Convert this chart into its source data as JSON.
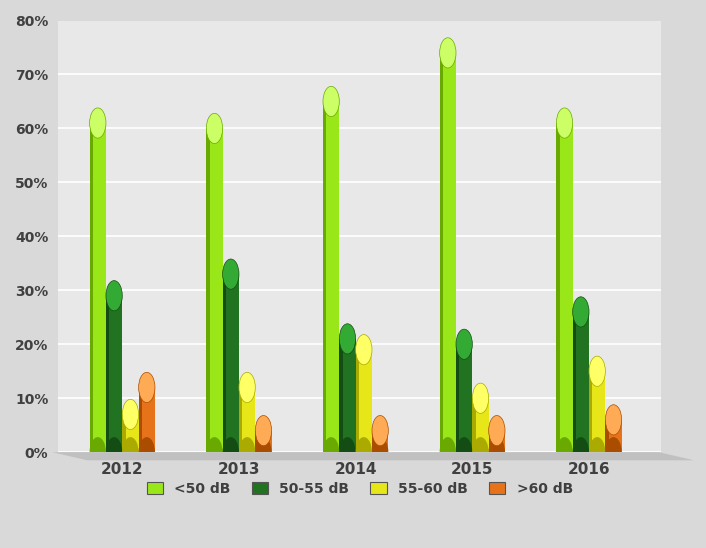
{
  "years": [
    "2012",
    "2013",
    "2014",
    "2015",
    "2016"
  ],
  "series": {
    "<50 dB": [
      61,
      60,
      65,
      74,
      61
    ],
    "50-55 dB": [
      29,
      33,
      21,
      20,
      26
    ],
    "55-60 dB": [
      7,
      12,
      19,
      10,
      15
    ],
    ">60 dB": [
      12,
      4,
      4,
      4,
      6
    ]
  },
  "colors": {
    "<50 dB": "#99e619",
    "50-55 dB": "#217321",
    "55-60 dB": "#e6e619",
    ">60 dB": "#e67319"
  },
  "dark_colors": {
    "<50 dB": "#6aaa00",
    "50-55 dB": "#144d14",
    "55-60 dB": "#aaaa00",
    ">60 dB": "#aa4d00"
  },
  "light_colors": {
    "<50 dB": "#ccff66",
    "50-55 dB": "#33aa33",
    "55-60 dB": "#ffff66",
    ">60 dB": "#ffaa55"
  },
  "ylim": [
    0,
    80
  ],
  "yticks": [
    0,
    10,
    20,
    30,
    40,
    50,
    60,
    70,
    80
  ],
  "ytick_labels": [
    "0%",
    "10%",
    "20%",
    "30%",
    "40%",
    "50%",
    "60%",
    "70%",
    "80%"
  ],
  "background_color": "#d9d9d9",
  "plot_bg_color": "#e8e8e8",
  "bar_width": 0.14,
  "legend_labels": [
    "<50 dB",
    "50-55 dB",
    "55-60 dB",
    ">60 dB"
  ]
}
